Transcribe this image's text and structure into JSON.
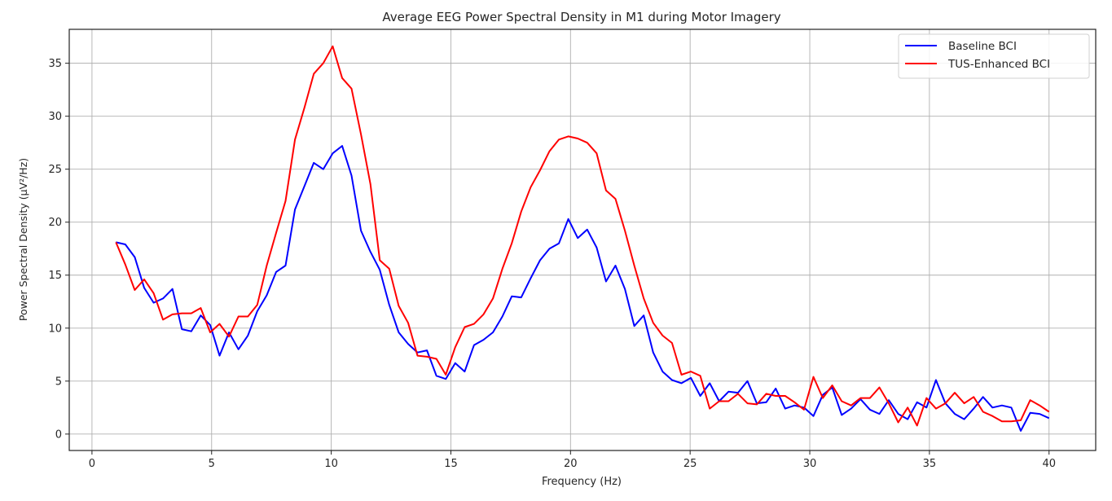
{
  "chart_data": {
    "type": "line",
    "title": "Average EEG Power Spectral Density in M1 during Motor Imagery",
    "xlabel": "Frequency (Hz)",
    "ylabel": "Power Spectral Density (μV²/Hz)",
    "xlim": [
      -0.95,
      41.95
    ],
    "ylim": [
      -1.55,
      38.2
    ],
    "xticks": [
      0,
      5,
      10,
      15,
      20,
      25,
      30,
      35,
      40
    ],
    "yticks": [
      0,
      5,
      10,
      15,
      20,
      25,
      30,
      35
    ],
    "xtick_labels": [
      "0",
      "5",
      "10",
      "15",
      "20",
      "25",
      "30",
      "35",
      "40"
    ],
    "ytick_labels": [
      "0",
      "5",
      "10",
      "15",
      "20",
      "25",
      "30",
      "35"
    ],
    "grid": true,
    "legend_position": "top-right",
    "x_start": 1,
    "x_end": 40,
    "n_points": 100,
    "series": [
      {
        "name": "Baseline BCI",
        "color": "#0000ff",
        "values": [
          18.1,
          17.9,
          16.7,
          13.8,
          12.4,
          12.8,
          13.7,
          9.9,
          9.7,
          11.2,
          10.3,
          7.4,
          9.6,
          8.0,
          9.3,
          11.6,
          13.1,
          15.3,
          15.9,
          21.2,
          23.4,
          25.6,
          25.0,
          26.5,
          27.2,
          24.4,
          19.2,
          17.2,
          15.5,
          12.2,
          9.6,
          8.5,
          7.7,
          7.9,
          5.5,
          5.2,
          6.7,
          5.9,
          8.4,
          8.9,
          9.6,
          11.1,
          13.0,
          12.9,
          14.7,
          16.4,
          17.5,
          18.0,
          20.3,
          18.5,
          19.3,
          17.6,
          14.4,
          15.9,
          13.7,
          10.2,
          11.2,
          7.7,
          5.9,
          5.1,
          4.8,
          5.3,
          3.6,
          4.8,
          3.1,
          4.0,
          3.9,
          5.0,
          2.9,
          3.0,
          4.3,
          2.4,
          2.7,
          2.5,
          1.7,
          3.7,
          4.4,
          1.8,
          2.4,
          3.3,
          2.3,
          1.9,
          3.2,
          1.9,
          1.4,
          3.0,
          2.5,
          5.1,
          2.9,
          1.9,
          1.4,
          2.4,
          3.5,
          2.5,
          2.7,
          2.5,
          0.3,
          2.0,
          1.9,
          1.5
        ]
      },
      {
        "name": "TUS-Enhanced BCI",
        "color": "#ff0000",
        "values": [
          18.1,
          16.0,
          13.6,
          14.6,
          13.3,
          10.8,
          11.3,
          11.4,
          11.4,
          11.9,
          9.6,
          10.4,
          9.2,
          11.1,
          11.1,
          12.2,
          15.9,
          19.0,
          22.0,
          27.8,
          30.8,
          34.0,
          35.0,
          36.6,
          33.6,
          32.6,
          28.3,
          23.6,
          16.4,
          15.6,
          12.1,
          10.5,
          7.4,
          7.3,
          7.1,
          5.6,
          8.2,
          10.1,
          10.4,
          11.3,
          12.8,
          15.6,
          18.0,
          21.0,
          23.3,
          24.9,
          26.7,
          27.8,
          28.1,
          27.9,
          27.5,
          26.5,
          23.0,
          22.2,
          19.2,
          15.9,
          12.8,
          10.5,
          9.3,
          8.6,
          5.6,
          5.9,
          5.5,
          2.4,
          3.1,
          3.1,
          3.8,
          2.9,
          2.8,
          3.8,
          3.6,
          3.6,
          3.0,
          2.3,
          5.4,
          3.4,
          4.6,
          3.1,
          2.7,
          3.4,
          3.4,
          4.4,
          2.9,
          1.1,
          2.5,
          0.8,
          3.4,
          2.4,
          2.9,
          3.9,
          2.9,
          3.5,
          2.1,
          1.7,
          1.2,
          1.2,
          1.3,
          3.2,
          2.7,
          2.1
        ]
      }
    ]
  }
}
